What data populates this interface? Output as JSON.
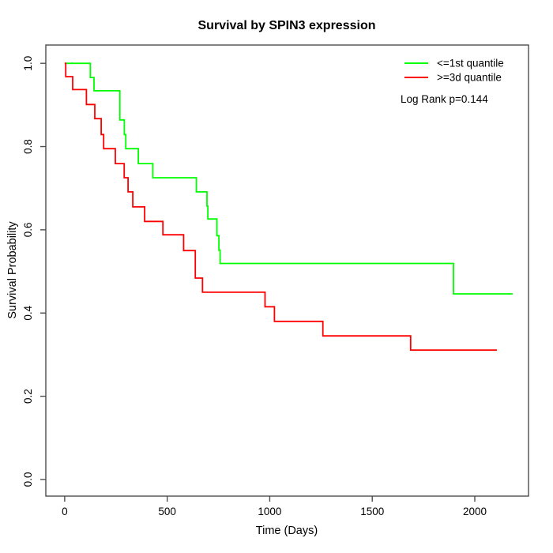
{
  "chart_data": {
    "type": "line",
    "subtype": "kaplan-meier-step",
    "title": "Survival by SPIN3 expression",
    "xlabel": "Time (Days)",
    "ylabel": "Survival Probability",
    "x_ticks": [
      0,
      500,
      1000,
      1500,
      2000
    ],
    "y_ticks": [
      "0.0",
      "0.2",
      "0.4",
      "0.6",
      "0.8",
      "1.0"
    ],
    "xlim": [
      -92,
      2262
    ],
    "ylim": [
      -0.04,
      1.044
    ],
    "grid": false,
    "legend_position": "top-right",
    "annotation": "Log Rank p=0.144",
    "series": [
      {
        "name": "<=1st quantile",
        "color": "#00ff00",
        "end_time": 2185,
        "steps": [
          [
            0,
            1.0
          ],
          [
            125,
            0.966
          ],
          [
            143,
            0.934
          ],
          [
            269,
            0.864
          ],
          [
            291,
            0.829
          ],
          [
            298,
            0.795
          ],
          [
            359,
            0.759
          ],
          [
            430,
            0.725
          ],
          [
            642,
            0.691
          ],
          [
            694,
            0.657
          ],
          [
            698,
            0.626
          ],
          [
            742,
            0.586
          ],
          [
            752,
            0.551
          ],
          [
            758,
            0.519
          ],
          [
            1896,
            0.446
          ]
        ]
      },
      {
        "name": ">=3d quantile",
        "color": "#ff0000",
        "end_time": 2108,
        "steps": [
          [
            0,
            1.0
          ],
          [
            5,
            0.968
          ],
          [
            39,
            0.937
          ],
          [
            106,
            0.901
          ],
          [
            147,
            0.867
          ],
          [
            178,
            0.829
          ],
          [
            190,
            0.795
          ],
          [
            247,
            0.759
          ],
          [
            290,
            0.725
          ],
          [
            309,
            0.691
          ],
          [
            332,
            0.655
          ],
          [
            390,
            0.62
          ],
          [
            479,
            0.588
          ],
          [
            580,
            0.55
          ],
          [
            637,
            0.484
          ],
          [
            672,
            0.45
          ],
          [
            977,
            0.415
          ],
          [
            1023,
            0.38
          ],
          [
            1259,
            0.345
          ],
          [
            1687,
            0.311
          ]
        ]
      }
    ]
  },
  "style": {
    "axis_color": "#4d4d4d",
    "text_color": "#000000",
    "background": "#ffffff"
  }
}
